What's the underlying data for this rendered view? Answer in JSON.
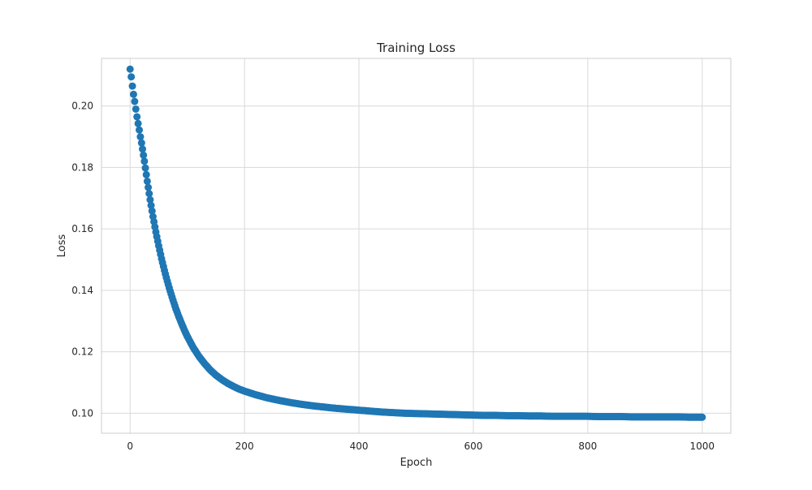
{
  "colors": {
    "background": "#ffffff",
    "grid": "#d9d9d9",
    "frame": "#cccccc",
    "series": "#1f77b4",
    "text": "#262626"
  },
  "chart_data": {
    "type": "scatter",
    "title": "Training Loss",
    "xlabel": "Epoch",
    "ylabel": "Loss",
    "xlim": [
      -50,
      1050
    ],
    "ylim": [
      0.0935,
      0.2155
    ],
    "xticks": [
      0,
      200,
      400,
      600,
      800,
      1000
    ],
    "xtick_labels": [
      "0",
      "200",
      "400",
      "600",
      "800",
      "1000"
    ],
    "yticks": [
      0.1,
      0.12,
      0.14,
      0.16,
      0.18,
      0.2
    ],
    "ytick_labels": [
      "0.10",
      "0.12",
      "0.14",
      "0.16",
      "0.18",
      "0.20"
    ],
    "grid": true,
    "legend": "none",
    "marker": "circle",
    "series": [
      {
        "x": [
          0,
          2,
          4,
          6,
          8,
          10,
          12,
          14,
          16,
          18,
          20,
          25,
          30,
          35,
          40,
          45,
          50,
          55,
          60,
          65,
          70,
          75,
          80,
          85,
          90,
          95,
          100,
          110,
          120,
          130,
          140,
          150,
          160,
          170,
          180,
          190,
          200,
          220,
          240,
          260,
          280,
          300,
          320,
          340,
          360,
          380,
          400,
          420,
          440,
          460,
          480,
          500,
          520,
          540,
          560,
          580,
          600,
          620,
          640,
          660,
          680,
          700,
          720,
          740,
          760,
          780,
          800,
          820,
          840,
          860,
          880,
          900,
          920,
          940,
          960,
          980,
          1000
        ],
        "y": [
          0.212,
          0.2095,
          0.2065,
          0.2038,
          0.2015,
          0.199,
          0.1965,
          0.1943,
          0.1922,
          0.19,
          0.188,
          0.182,
          0.1755,
          0.1695,
          0.164,
          0.159,
          0.1545,
          0.1503,
          0.1465,
          0.143,
          0.1398,
          0.1368,
          0.134,
          0.1315,
          0.1292,
          0.127,
          0.125,
          0.1215,
          0.1186,
          0.1162,
          0.1141,
          0.1124,
          0.111,
          0.1098,
          0.1088,
          0.1079,
          0.1072,
          0.106,
          0.105,
          0.1042,
          0.1035,
          0.1029,
          0.1024,
          0.102,
          0.1016,
          0.1013,
          0.101,
          0.1007,
          0.1004,
          0.1002,
          0.1,
          0.0999,
          0.0998,
          0.0997,
          0.0996,
          0.0995,
          0.0994,
          0.0993,
          0.0993,
          0.0992,
          0.0992,
          0.0991,
          0.0991,
          0.099,
          0.099,
          0.099,
          0.099,
          0.0989,
          0.0989,
          0.0989,
          0.0988,
          0.0988,
          0.0988,
          0.0988,
          0.0988,
          0.0987,
          0.0987
        ]
      }
    ]
  }
}
